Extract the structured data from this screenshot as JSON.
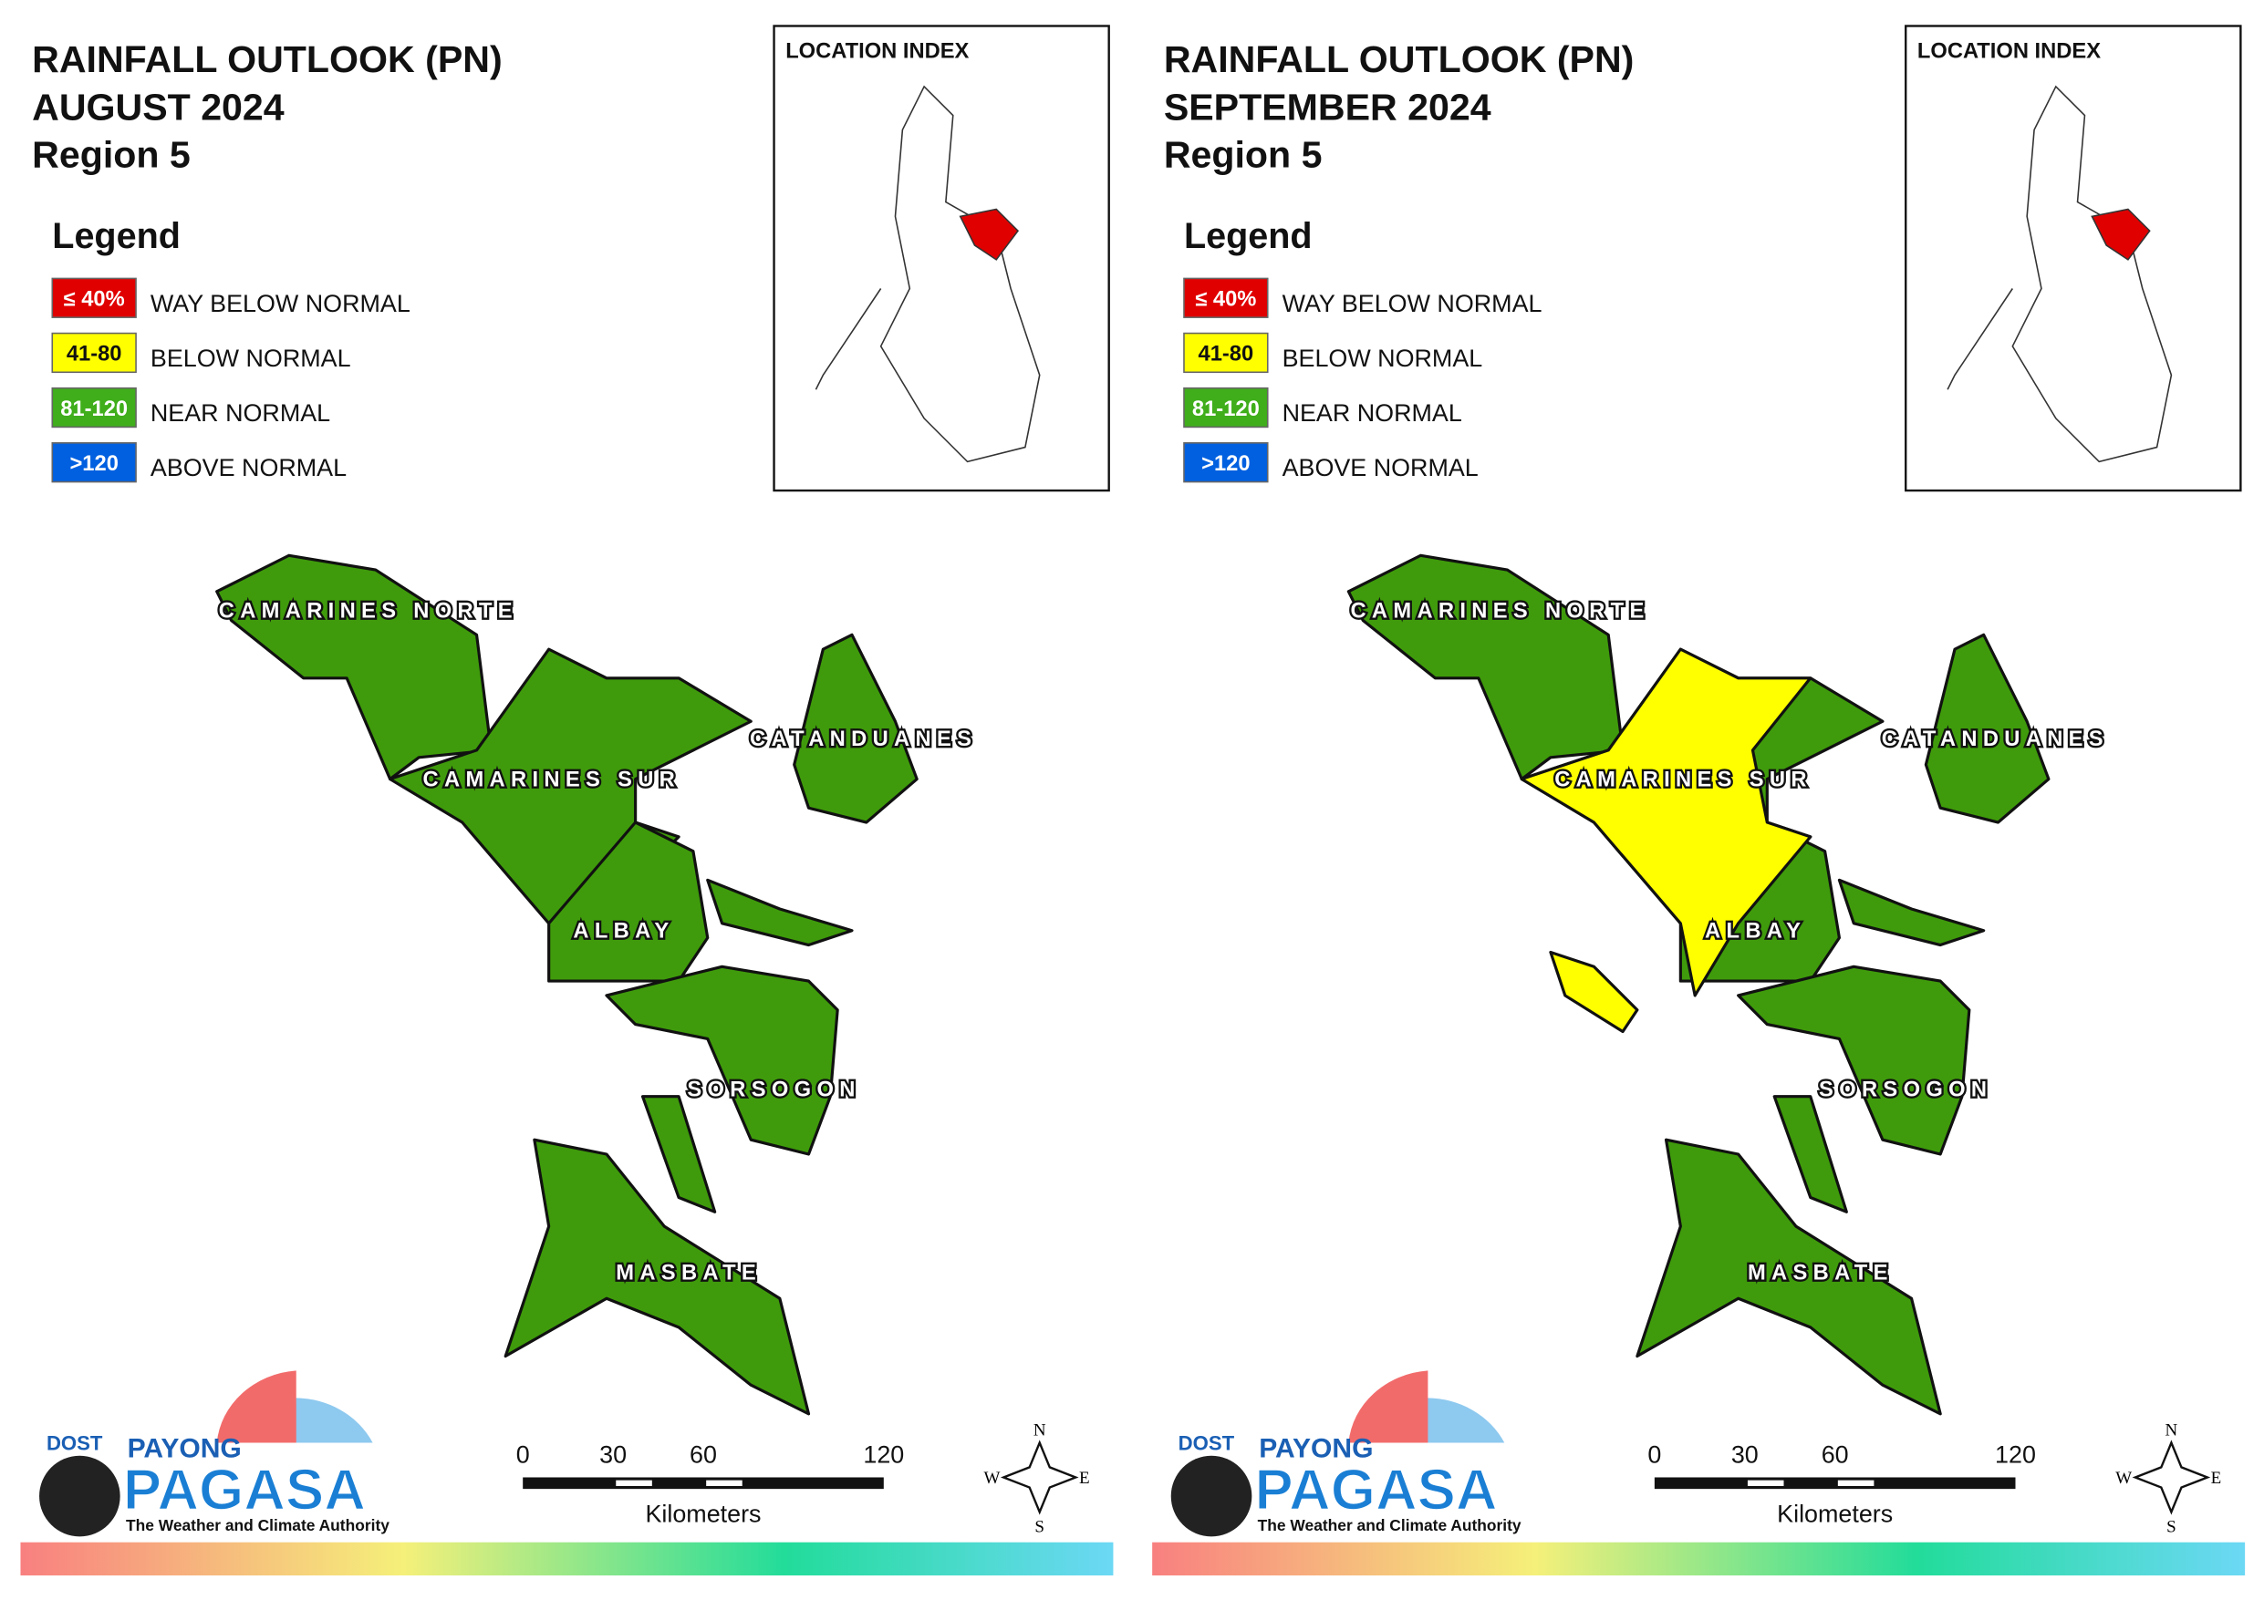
{
  "panels": [
    {
      "title": [
        "RAINFALL OUTLOOK (PN)",
        "AUGUST 2024",
        "Region 5"
      ],
      "location_index": "LOCATION INDEX"
    },
    {
      "title": [
        "RAINFALL OUTLOOK (PN)",
        "SEPTEMBER 2024",
        "Region 5"
      ],
      "location_index": "LOCATION INDEX"
    }
  ],
  "legend": {
    "title": "Legend",
    "items": [
      {
        "swatch": "≤ 40%",
        "label": "WAY BELOW NORMAL",
        "color": "#e00000"
      },
      {
        "swatch": "41-80",
        "label": "BELOW NORMAL",
        "color": "#ffff00"
      },
      {
        "swatch": "81-120",
        "label": "NEAR NORMAL",
        "color": "#3fae1a"
      },
      {
        "swatch": ">120",
        "label": "ABOVE NORMAL",
        "color": "#0060e0"
      }
    ]
  },
  "provinces": [
    "CAMARINES NORTE",
    "CAMARINES SUR",
    "CATANDUANES",
    "ALBAY",
    "SORSOGON",
    "MASBATE"
  ],
  "scale": {
    "ticks": [
      0,
      30,
      60,
      120
    ],
    "unit": "Kilometers"
  },
  "compass": [
    "N",
    "E",
    "S",
    "W"
  ],
  "logo": {
    "agency": "DOST",
    "line1": "PAYONG",
    "line2": "PAGASA",
    "tagline": "The Weather and Climate Authority"
  }
}
